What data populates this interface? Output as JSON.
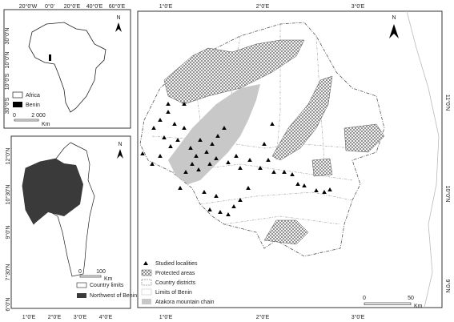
{
  "africa_map": {
    "north": "N",
    "lon_labels": [
      "20°0'W",
      "0°0'",
      "20°0'E",
      "40°0'E",
      "60°0'E"
    ],
    "lat_labels": [
      "30°0'N",
      "10°0'N",
      "10°0'S",
      "30°0'S"
    ],
    "legend": [
      "Africa",
      "Benin"
    ],
    "scale_labels": [
      "0",
      "2 000"
    ],
    "scale_unit": "Km"
  },
  "benin_map": {
    "north": "N",
    "lat_labels": [
      "12°0'N",
      "10°30'N",
      "9°0'N",
      "7°30'N",
      "6°0'N"
    ],
    "lon_labels": [
      "1°0'E",
      "2°0'E",
      "3°0'E",
      "4°0'E"
    ],
    "scale_labels": [
      "0",
      "100"
    ],
    "scale_unit": "Km",
    "legend": [
      "Country limits",
      "Northwest of Benin"
    ]
  },
  "main_map": {
    "north": "N",
    "lon_labels": [
      "1°0'E",
      "2°0'E",
      "3°0'E"
    ],
    "lat_labels": [
      "11°0'N",
      "10°0'N",
      "9°0'N"
    ],
    "scale_labels": [
      "0",
      "50"
    ],
    "scale_unit": "Km",
    "legend": [
      "Studied localities",
      "Protected areas",
      "Country districts",
      "Limits of Benin",
      "Atakora mountain chain"
    ]
  }
}
